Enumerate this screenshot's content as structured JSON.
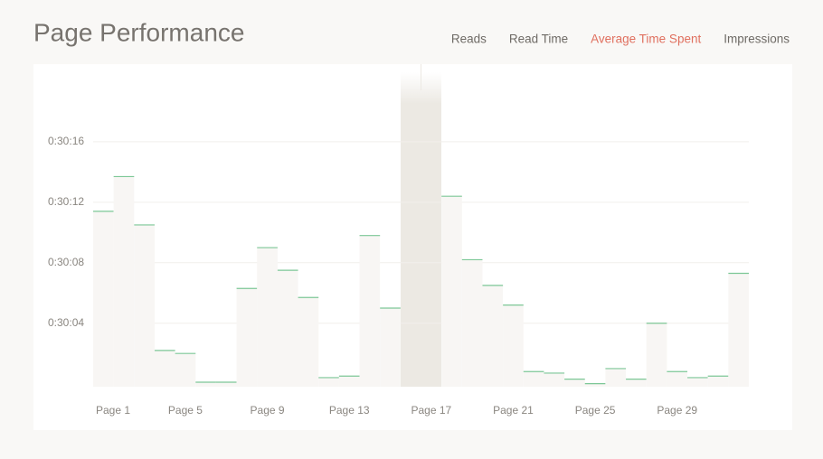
{
  "header": {
    "title": "Page Performance",
    "tabs": [
      {
        "label": "Reads"
      },
      {
        "label": "Read Time"
      },
      {
        "label": "Average Time Spent",
        "active": true
      },
      {
        "label": "Impressions"
      }
    ]
  },
  "chart_data": {
    "type": "bar",
    "categories": [
      "Page 1",
      null,
      null,
      null,
      "Page 5",
      null,
      null,
      null,
      "Page 9",
      null,
      null,
      null,
      "Page 13",
      null,
      null,
      null,
      "Page 17",
      null,
      null,
      null,
      "Page 21",
      null,
      null,
      null,
      "Page 25",
      null,
      null,
      null,
      "Page 29",
      null,
      null,
      null
    ],
    "values": [
      1811.4,
      1813.7,
      1810.5,
      1802.2,
      1802.0,
      1800.1,
      1800.1,
      1806.3,
      1809.0,
      1807.5,
      1805.7,
      1800.4,
      1800.5,
      1809.8,
      1805.0,
      null,
      null,
      1812.4,
      1808.2,
      1806.5,
      1805.2,
      1800.8,
      1800.7,
      1800.3,
      1800.0,
      1801.0,
      1800.3,
      1804.0,
      1800.8,
      1800.4,
      1800.5,
      1807.3
    ],
    "color": "#7cc796",
    "ylim": [
      1799.8,
      1820
    ],
    "yticks": [
      {
        "value": 1804,
        "label": "0:30:04"
      },
      {
        "value": 1808,
        "label": "0:30:08"
      },
      {
        "value": 1812,
        "label": "0:30:12"
      },
      {
        "value": 1816,
        "label": "0:30:16"
      }
    ],
    "grid": true
  }
}
